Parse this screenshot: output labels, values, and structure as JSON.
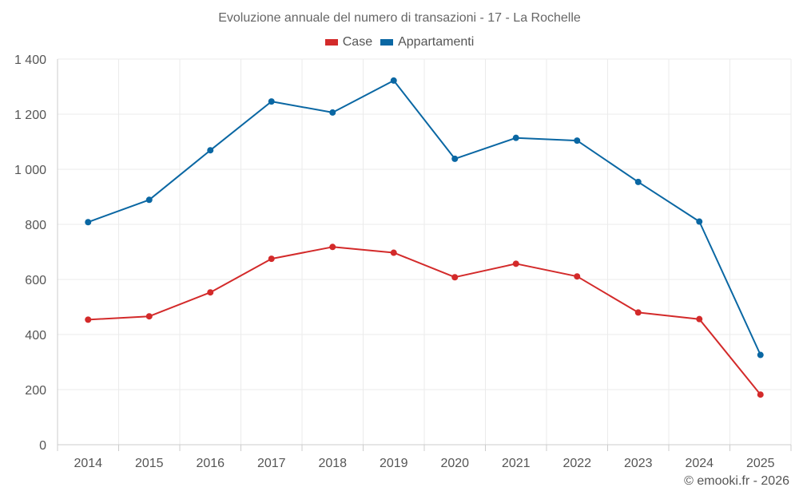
{
  "chart_data": {
    "type": "line",
    "title": "Evoluzione annuale del numero di transazioni - 17 - La Rochelle",
    "xlabel": "",
    "ylabel": "",
    "categories": [
      "2014",
      "2015",
      "2016",
      "2017",
      "2018",
      "2019",
      "2020",
      "2021",
      "2022",
      "2023",
      "2024",
      "2025"
    ],
    "series": [
      {
        "name": "Case",
        "color": "#d32a2a",
        "values": [
          454,
          466,
          553,
          675,
          718,
          697,
          608,
          657,
          611,
          480,
          456,
          182
        ]
      },
      {
        "name": "Appartamenti",
        "color": "#0a67a3",
        "values": [
          808,
          889,
          1069,
          1246,
          1206,
          1322,
          1038,
          1114,
          1104,
          954,
          810,
          326
        ]
      }
    ],
    "ylim": [
      0,
      1400
    ],
    "yticks": [
      0,
      200,
      400,
      600,
      800,
      1000,
      1200,
      1400
    ],
    "ytick_labels": [
      "0",
      "200",
      "400",
      "600",
      "800",
      "1 000",
      "1 200",
      "1 400"
    ],
    "grid": true,
    "legend_position": "top-center"
  },
  "credit": "© emooki.fr - 2026"
}
